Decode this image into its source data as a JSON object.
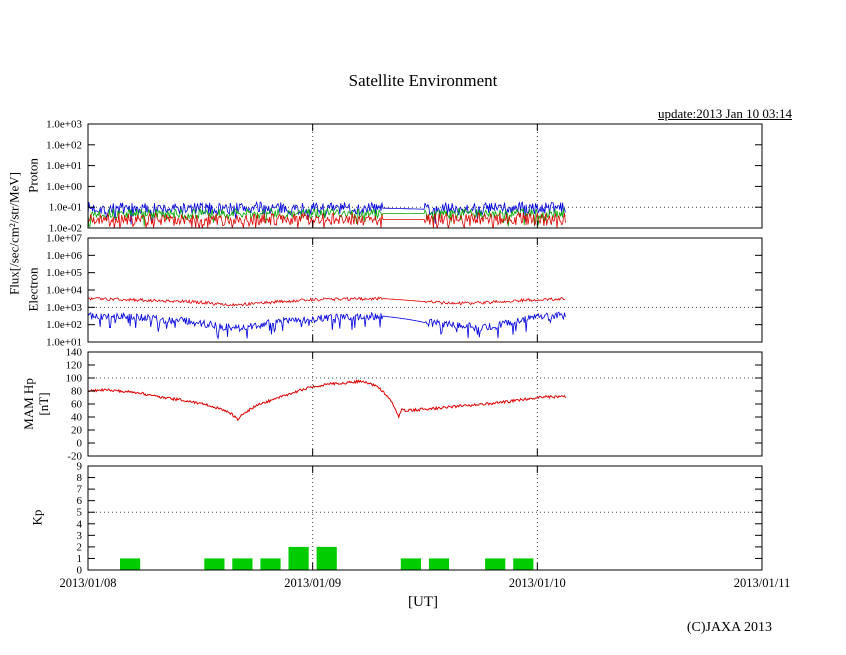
{
  "title": "Satellite Environment",
  "update_text": "update:2013 Jan 10 03:14",
  "copyright": "(C)JAXA 2013",
  "xaxis_label": "[UT]",
  "labels": {
    "flux": "Flux[/sec/cm²/str/MeV]",
    "proton": "Proton",
    "electron": "Electron",
    "mam_hp": "MAM Hp",
    "nt": "[nT]",
    "kp": "Kp"
  },
  "colors": {
    "blue": "#0000dd",
    "green": "#00aa00",
    "red": "#dd0000",
    "kp_green": "#00cc00",
    "axis": "#000000"
  },
  "chart_data": {
    "x_hours_range": [
      0,
      72
    ],
    "data_end_hour": 51,
    "gap_hours": [
      31.5,
      36
    ],
    "x_day_ticks": [
      {
        "h": 0,
        "label": "2013/01/08"
      },
      {
        "h": 24,
        "label": "2013/01/09"
      },
      {
        "h": 48,
        "label": "2013/01/10"
      },
      {
        "h": 72,
        "label": "2013/01/11"
      }
    ],
    "panels": [
      {
        "id": "proton",
        "type": "line",
        "scale": "log",
        "ylim": [
          0.01,
          1000
        ],
        "grid_values": [
          0.1
        ],
        "yticks": [
          {
            "v": 1000,
            "label": "1.0e+03"
          },
          {
            "v": 100,
            "label": "1.0e+02"
          },
          {
            "v": 10,
            "label": "1.0e+01"
          },
          {
            "v": 1,
            "label": "1.0e+00"
          },
          {
            "v": 0.1,
            "label": "1.0e-01"
          },
          {
            "v": 0.01,
            "label": "1.0e-02"
          }
        ],
        "series": [
          {
            "name": "proton-high",
            "color": "#0000dd",
            "seed": 7,
            "noise_dex": 0.3,
            "spike": [
              0.06,
              0.35
            ],
            "gap": true,
            "keypoints": [
              [
                0,
                0.09
              ],
              [
                8,
                0.08
              ],
              [
                16,
                0.09
              ],
              [
                24,
                0.085
              ],
              [
                31.5,
                0.09
              ],
              [
                36,
                0.08
              ],
              [
                42,
                0.09
              ],
              [
                51,
                0.085
              ]
            ]
          },
          {
            "name": "proton-mid",
            "color": "#00aa00",
            "seed": 13,
            "noise_dex": 0.25,
            "spike": [
              0.05,
              0.4
            ],
            "gap": true,
            "keypoints": [
              [
                0,
                0.05
              ],
              [
                10,
                0.045
              ],
              [
                20,
                0.05
              ],
              [
                31.5,
                0.05
              ],
              [
                36,
                0.05
              ],
              [
                44,
                0.048
              ],
              [
                51,
                0.05
              ]
            ]
          },
          {
            "name": "proton-low",
            "color": "#dd0000",
            "seed": 21,
            "noise_dex": 0.3,
            "spike": [
              0.12,
              0.45
            ],
            "gap": true,
            "keypoints": [
              [
                0,
                0.028
              ],
              [
                12,
                0.025
              ],
              [
                24,
                0.027
              ],
              [
                31.5,
                0.026
              ],
              [
                36,
                0.026
              ],
              [
                51,
                0.027
              ]
            ]
          }
        ]
      },
      {
        "id": "electron",
        "type": "line",
        "scale": "log",
        "ylim": [
          10,
          10000000
        ],
        "grid_values": [
          1000
        ],
        "yticks": [
          {
            "v": 10000000,
            "label": "1.0e+07"
          },
          {
            "v": 1000000,
            "label": "1.0e+06"
          },
          {
            "v": 100000,
            "label": "1.0e+05"
          },
          {
            "v": 10000,
            "label": "1.0e+04"
          },
          {
            "v": 1000,
            "label": "1.0e+03"
          },
          {
            "v": 100,
            "label": "1.0e+02"
          },
          {
            "v": 10,
            "label": "1.0e+01"
          }
        ],
        "series": [
          {
            "name": "electron-high",
            "color": "#dd0000",
            "seed": 31,
            "noise_dex": 0.09,
            "gap": true,
            "keypoints": [
              [
                0,
                3200
              ],
              [
                4,
                2800
              ],
              [
                8,
                2400
              ],
              [
                12,
                2000
              ],
              [
                14,
                1500
              ],
              [
                16,
                1400
              ],
              [
                18,
                1700
              ],
              [
                21,
                2200
              ],
              [
                24,
                2800
              ],
              [
                27,
                3000
              ],
              [
                30,
                3100
              ],
              [
                31.5,
                3200
              ],
              [
                36,
                2100
              ],
              [
                38,
                1800
              ],
              [
                41,
                1700
              ],
              [
                44,
                2100
              ],
              [
                47,
                2600
              ],
              [
                50,
                3000
              ],
              [
                51,
                3000
              ]
            ]
          },
          {
            "name": "electron-low",
            "color": "#0000dd",
            "seed": 41,
            "noise_dex": 0.22,
            "spike": [
              0.1,
              0.3
            ],
            "gap": true,
            "keypoints": [
              [
                0,
                320
              ],
              [
                4,
                280
              ],
              [
                8,
                200
              ],
              [
                11,
                150
              ],
              [
                13,
                100
              ],
              [
                15,
                70
              ],
              [
                16.5,
                55
              ],
              [
                18,
                90
              ],
              [
                20,
                130
              ],
              [
                22,
                180
              ],
              [
                24,
                210
              ],
              [
                26,
                240
              ],
              [
                28,
                270
              ],
              [
                30,
                300
              ],
              [
                31.5,
                310
              ],
              [
                36,
                130
              ],
              [
                38,
                110
              ],
              [
                40,
                85
              ],
              [
                42,
                65
              ],
              [
                44,
                95
              ],
              [
                46,
                160
              ],
              [
                48,
                260
              ],
              [
                50,
                320
              ],
              [
                51,
                330
              ]
            ]
          }
        ]
      },
      {
        "id": "hp",
        "type": "line",
        "scale": "linear",
        "ylim": [
          -20,
          140
        ],
        "grid_values": [
          100
        ],
        "yticks": [
          {
            "v": 140,
            "label": "140"
          },
          {
            "v": 120,
            "label": "120"
          },
          {
            "v": 100,
            "label": "100"
          },
          {
            "v": 80,
            "label": "80"
          },
          {
            "v": 60,
            "label": "60"
          },
          {
            "v": 40,
            "label": "40"
          },
          {
            "v": 20,
            "label": "20"
          },
          {
            "v": 0,
            "label": "0"
          },
          {
            "v": -20,
            "label": "-20"
          }
        ],
        "series": [
          {
            "name": "hp-field",
            "color": "#dd0000",
            "seed": 51,
            "noise_amp": 2,
            "gap": false,
            "keypoints": [
              [
                0,
                80
              ],
              [
                2,
                82
              ],
              [
                5,
                78
              ],
              [
                8,
                70
              ],
              [
                11,
                64
              ],
              [
                13,
                58
              ],
              [
                15,
                48
              ],
              [
                16,
                37
              ],
              [
                16.7,
                46
              ],
              [
                18,
                58
              ],
              [
                20,
                68
              ],
              [
                22,
                78
              ],
              [
                24,
                87
              ],
              [
                26,
                91
              ],
              [
                28,
                93
              ],
              [
                29,
                95
              ],
              [
                30,
                92
              ],
              [
                31,
                86
              ],
              [
                32,
                72
              ],
              [
                32.8,
                55
              ],
              [
                33.2,
                40
              ],
              [
                33.5,
                52
              ],
              [
                34,
                50
              ],
              [
                35,
                51
              ],
              [
                37,
                53
              ],
              [
                39,
                56
              ],
              [
                41,
                58
              ],
              [
                43,
                61
              ],
              [
                45,
                64
              ],
              [
                47,
                68
              ],
              [
                49,
                71
              ],
              [
                51,
                71
              ]
            ]
          }
        ]
      },
      {
        "id": "kp",
        "type": "bar",
        "scale": "linear",
        "ylim": [
          0,
          9
        ],
        "grid_values": [
          5
        ],
        "yticks": [
          {
            "v": 9,
            "label": "9"
          },
          {
            "v": 8,
            "label": "8"
          },
          {
            "v": 7,
            "label": "7"
          },
          {
            "v": 6,
            "label": "6"
          },
          {
            "v": 5,
            "label": "5"
          },
          {
            "v": 4,
            "label": "4"
          },
          {
            "v": 3,
            "label": "3"
          },
          {
            "v": 2,
            "label": "2"
          },
          {
            "v": 1,
            "label": "1"
          },
          {
            "v": 0,
            "label": "0"
          }
        ],
        "bars": {
          "interval_hours": 3,
          "color": "#00cc00",
          "values": [
            0,
            1,
            0,
            0,
            1,
            1,
            1,
            2,
            2,
            0,
            0,
            1,
            1,
            0,
            1,
            1,
            0
          ]
        }
      }
    ]
  }
}
